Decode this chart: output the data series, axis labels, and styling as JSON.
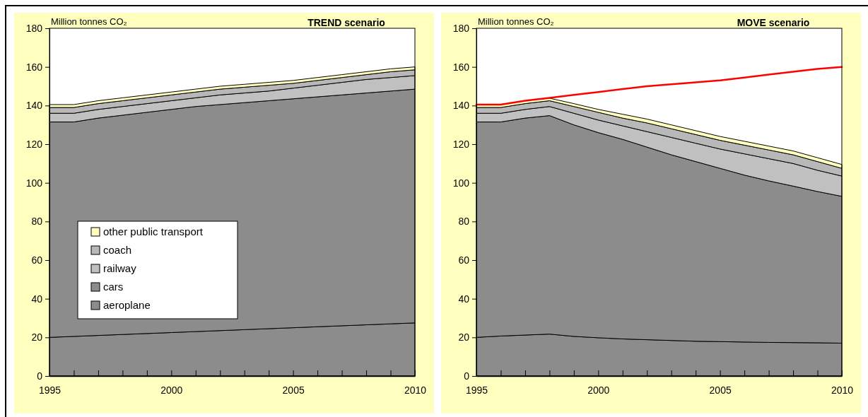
{
  "chart_data": [
    {
      "type": "area",
      "title": "TREND scenario",
      "ylabel": "Million tonnes CO₂",
      "stacked": true,
      "legend": "left",
      "grid": false,
      "x": [
        1995,
        1996,
        1997,
        1998,
        1999,
        2000,
        2001,
        2002,
        2003,
        2004,
        2005,
        2006,
        2007,
        2008,
        2009,
        2010
      ],
      "xlim": [
        1995,
        2010
      ],
      "xticks": [
        1995,
        {
          "value": 1996,
          "label": null
        },
        {
          "value": 1997,
          "label": null
        },
        {
          "value": 1998,
          "label": null
        },
        {
          "value": 1999,
          "label": null
        },
        2000,
        {
          "value": 2001,
          "label": null
        },
        {
          "value": 2002,
          "label": null
        },
        {
          "value": 2003,
          "label": null
        },
        {
          "value": 2004,
          "label": null
        },
        2005,
        {
          "value": 2006,
          "label": null
        },
        {
          "value": 2007,
          "label": null
        },
        {
          "value": 2008,
          "label": null
        },
        {
          "value": 2009,
          "label": null
        },
        2010
      ],
      "ylim": [
        0,
        180
      ],
      "yticks": [
        0,
        20,
        40,
        60,
        80,
        100,
        120,
        140,
        160,
        180
      ],
      "series": [
        {
          "name": "aeroplane",
          "color": "#8c8c8c",
          "values": [
            20,
            20.5,
            21,
            21.5,
            22,
            22.5,
            23,
            23.5,
            24,
            24.5,
            25,
            25.5,
            26,
            26.5,
            27,
            27.5
          ]
        },
        {
          "name": "cars",
          "color": "#8c8c8c",
          "values": [
            111.5,
            111,
            112.5,
            113.5,
            114.5,
            115.5,
            116.5,
            117,
            117.5,
            118,
            118.5,
            119,
            119.5,
            120,
            120.5,
            121
          ]
        },
        {
          "name": "railway",
          "color": "#c0c0c0",
          "values": [
            4.5,
            4.5,
            4.5,
            4.5,
            4.5,
            4.5,
            4.5,
            5,
            5,
            5,
            5.5,
            6,
            6.5,
            7,
            7,
            7
          ]
        },
        {
          "name": "coach",
          "color": "#b8b8b8",
          "values": [
            3,
            3,
            3,
            3,
            3,
            3,
            3,
            3,
            3,
            3,
            2.5,
            2.5,
            2.5,
            2.5,
            3,
            3
          ]
        },
        {
          "name": "other public transport",
          "color": "#ffffc0",
          "values": [
            1.5,
            1.5,
            1.5,
            1.5,
            1.5,
            1.5,
            1.5,
            1.5,
            1.5,
            1.5,
            1.5,
            1.5,
            1.5,
            1.5,
            1.5,
            1.5
          ]
        }
      ]
    },
    {
      "type": "area",
      "title": "MOVE scenario",
      "ylabel": "Million tonnes CO₂",
      "stacked": true,
      "legend": false,
      "grid": false,
      "x": [
        1995,
        1996,
        1997,
        1998,
        1999,
        2000,
        2001,
        2002,
        2003,
        2004,
        2005,
        2006,
        2007,
        2008,
        2009,
        2010
      ],
      "xlim": [
        1995,
        2010
      ],
      "xticks": [
        1995,
        {
          "value": 1996,
          "label": null
        },
        {
          "value": 1997,
          "label": null
        },
        {
          "value": 1998,
          "label": null
        },
        {
          "value": 1999,
          "label": null
        },
        2000,
        {
          "value": 2001,
          "label": null
        },
        {
          "value": 2002,
          "label": null
        },
        {
          "value": 2003,
          "label": null
        },
        {
          "value": 2004,
          "label": null
        },
        2005,
        {
          "value": 2006,
          "label": null
        },
        {
          "value": 2007,
          "label": null
        },
        {
          "value": 2008,
          "label": null
        },
        {
          "value": 2009,
          "label": null
        },
        2010
      ],
      "ylim": [
        0,
        180
      ],
      "yticks": [
        0,
        20,
        40,
        60,
        80,
        100,
        120,
        140,
        160,
        180
      ],
      "series": [
        {
          "color": "#8c8c8c",
          "values": [
            20,
            20.7,
            21.2,
            21.7,
            20.5,
            19.8,
            19.2,
            18.8,
            18.4,
            18,
            17.8,
            17.6,
            17.4,
            17.3,
            17.2,
            17
          ]
        },
        {
          "color": "#8c8c8c",
          "values": [
            111.5,
            110.8,
            112.3,
            113.1,
            109.5,
            106.2,
            103.3,
            99.7,
            96.1,
            93,
            89.7,
            86.4,
            83.6,
            81,
            78.3,
            76
          ]
        },
        {
          "color": "#c0c0c0",
          "values": [
            4.5,
            4.5,
            4.5,
            4.7,
            6,
            6.5,
            7,
            8,
            9,
            9.5,
            10,
            11,
            11.5,
            11.7,
            11,
            10.5
          ]
        },
        {
          "color": "#b8b8b8",
          "values": [
            3,
            3,
            3,
            3,
            3.5,
            4,
            4,
            4.5,
            4.5,
            4.5,
            4.5,
            4.5,
            4.5,
            4.5,
            4.5,
            4
          ]
        },
        {
          "color": "#ffffc0",
          "values": [
            1.5,
            1.5,
            1.5,
            1.3,
            1.5,
            1.5,
            2,
            2,
            2,
            2,
            2,
            2,
            2,
            2,
            2,
            2
          ]
        },
        {
          "type": "line",
          "color": "#ff0000",
          "values": [
            140.5,
            140.5,
            142.5,
            144,
            145.5,
            147,
            148.5,
            150,
            151,
            152,
            153,
            154.5,
            156,
            157.5,
            159,
            160
          ]
        }
      ]
    }
  ]
}
